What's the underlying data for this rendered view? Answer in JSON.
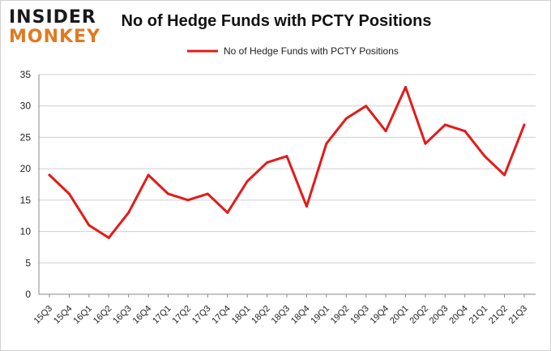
{
  "logo": {
    "line1": "INSIDER",
    "line2": "MONKEY"
  },
  "chart_data": {
    "type": "line",
    "title": "No of Hedge Funds with PCTY Positions",
    "xlabel": "",
    "ylabel": "",
    "categories": [
      "15Q3",
      "15Q4",
      "16Q1",
      "16Q2",
      "16Q3",
      "16Q4",
      "17Q1",
      "17Q2",
      "17Q3",
      "17Q4",
      "18Q1",
      "18Q2",
      "18Q3",
      "18Q4",
      "19Q1",
      "19Q2",
      "19Q3",
      "19Q4",
      "20Q1",
      "20Q2",
      "20Q3",
      "20Q4",
      "21Q1",
      "21Q2",
      "21Q3"
    ],
    "series": [
      {
        "name": "No of Hedge Funds with PCTY Positions",
        "values": [
          19,
          16,
          11,
          9,
          13,
          19,
          16,
          15,
          16,
          13,
          18,
          21,
          22,
          14,
          24,
          28,
          30,
          26,
          33,
          24,
          27,
          26,
          22,
          19,
          27
        ]
      }
    ],
    "ylim": [
      0,
      35
    ],
    "yticks": [
      0,
      5,
      10,
      15,
      20,
      25,
      30,
      35
    ],
    "grid": true,
    "legend_position": "top-center",
    "line_color": "#e41a1a"
  }
}
